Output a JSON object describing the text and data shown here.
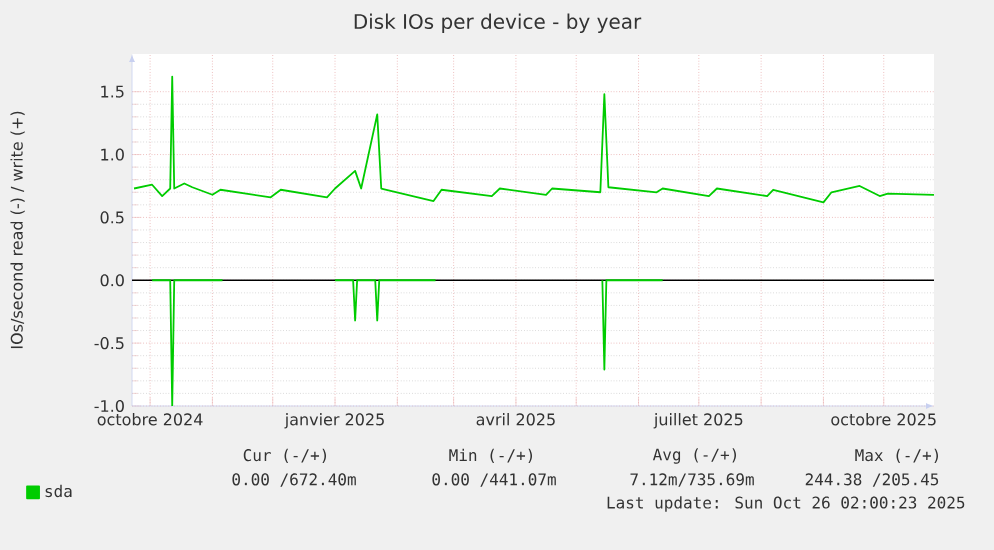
{
  "chart_data": {
    "type": "line",
    "title": "Disk IOs per device - by year",
    "ylabel": "IOs/second read (-) / write (+)",
    "xlim": [
      "2024-09-22",
      "2025-10-26"
    ],
    "ylim": [
      -1.0,
      1.8
    ],
    "xticks": [
      {
        "value": "2024-10-01",
        "label": "octobre 2024"
      },
      {
        "value": "2024-11-01",
        "label": null
      },
      {
        "value": "2024-12-01",
        "label": null
      },
      {
        "value": "2025-01-01",
        "label": "janvier 2025"
      },
      {
        "value": "2025-02-01",
        "label": null
      },
      {
        "value": "2025-03-01",
        "label": null
      },
      {
        "value": "2025-04-01",
        "label": "avril 2025"
      },
      {
        "value": "2025-05-01",
        "label": null
      },
      {
        "value": "2025-06-01",
        "label": null
      },
      {
        "value": "2025-07-01",
        "label": "juillet 2025"
      },
      {
        "value": "2025-08-01",
        "label": null
      },
      {
        "value": "2025-09-01",
        "label": null
      },
      {
        "value": "2025-10-01",
        "label": "octobre 2025"
      }
    ],
    "yticks": [
      {
        "value": -1.0,
        "label": "-1.0"
      },
      {
        "value": -0.5,
        "label": "-0.5"
      },
      {
        "value": 0.0,
        "label": "0.0"
      },
      {
        "value": 0.5,
        "label": "0.5"
      },
      {
        "value": 1.0,
        "label": "1.0"
      },
      {
        "value": 1.5,
        "label": "1.5"
      }
    ],
    "grid": true,
    "legend": "bottom left",
    "marker": "none",
    "line_style": "solid",
    "ref_lines": [
      {
        "axis": "y",
        "value": 0,
        "color": "#000000"
      }
    ],
    "series": [
      {
        "name": "sda",
        "color": "#00cc00",
        "x": [
          "2024-09-23",
          "2024-10-02",
          "2024-10-07",
          "2024-10-11",
          "2024-10-12",
          "2024-10-13",
          "2024-10-18",
          "2024-10-22",
          "2024-11-01",
          "2024-11-05",
          "2024-11-30",
          "2024-12-05",
          "2024-12-28",
          "2025-01-01",
          "2025-01-11",
          "2025-01-14",
          "2025-01-22",
          "2025-01-24",
          "2025-02-19",
          "2025-02-23",
          "2025-03-20",
          "2025-03-24",
          "2025-04-16",
          "2025-04-19",
          "2025-05-13",
          "2025-05-15",
          "2025-05-17",
          "2025-06-10",
          "2025-06-13",
          "2025-07-06",
          "2025-07-10",
          "2025-08-04",
          "2025-08-07",
          "2025-09-01",
          "2025-09-05",
          "2025-09-19",
          "2025-09-29",
          "2025-10-03",
          "2025-10-26"
        ],
        "values": [
          0.73,
          0.76,
          0.67,
          0.73,
          1.62,
          0.73,
          0.77,
          0.74,
          0.68,
          0.72,
          0.66,
          0.72,
          0.66,
          0.73,
          0.87,
          0.73,
          1.32,
          0.73,
          0.63,
          0.72,
          0.67,
          0.73,
          0.68,
          0.73,
          0.7,
          1.48,
          0.74,
          0.7,
          0.73,
          0.67,
          0.73,
          0.67,
          0.72,
          0.62,
          0.7,
          0.75,
          0.67,
          0.69,
          0.68
        ]
      },
      {
        "color": "#00cc00",
        "x": [
          "2024-10-02",
          "2024-10-11",
          "2024-10-12",
          "2024-10-13",
          "2024-11-06",
          "2024-12-01",
          "2025-01-01",
          "2025-01-10",
          "2025-01-11",
          "2025-01-12",
          "2025-01-21",
          "2025-01-22",
          "2025-01-23",
          "2025-02-20",
          "2025-03-15",
          "2025-05-14",
          "2025-05-15",
          "2025-05-16",
          "2025-06-13"
        ],
        "values": [
          0,
          0,
          -1.0,
          0,
          0,
          null,
          0,
          0,
          -0.32,
          0,
          0,
          -0.32,
          0,
          0,
          null,
          0,
          -0.71,
          0,
          0
        ]
      }
    ],
    "annotations": [
      "Cur (-/+)",
      "Min (-/+)",
      "Avg (-/+)",
      "Max (-/+)",
      "0.00 /672.40m",
      "0.00 /441.07m",
      "7.12m/735.69m",
      "244.38 /205.45",
      "Last update: Sun Oct 26 02:00:23 2025"
    ]
  }
}
